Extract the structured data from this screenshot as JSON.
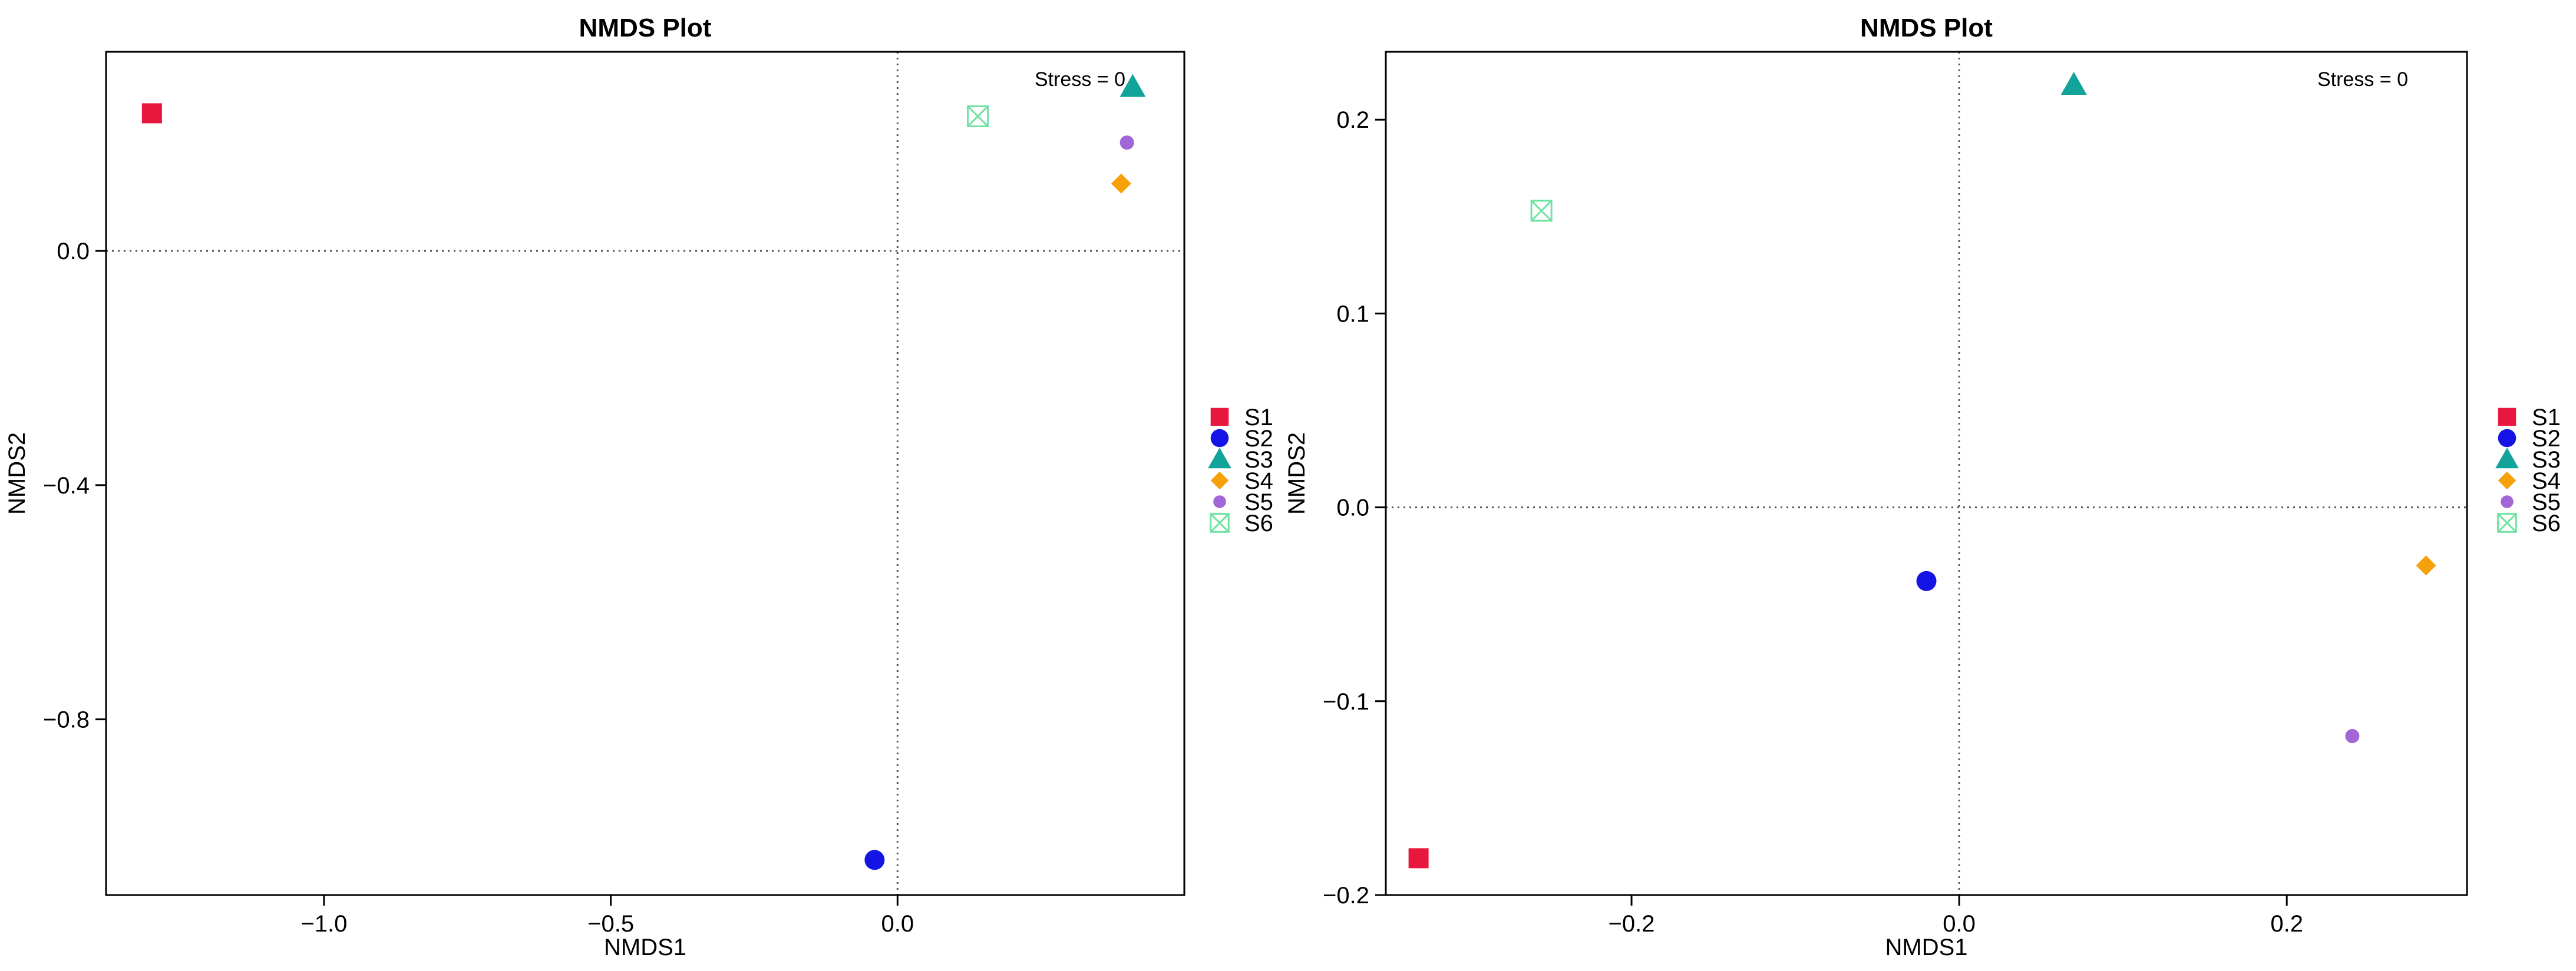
{
  "chart_data": [
    {
      "type": "scatter",
      "title": "NMDS Plot",
      "xlabel": "NMDS1",
      "ylabel": "NMDS2",
      "annotation": "Stress = 0",
      "xlim": [
        -1.38,
        0.5
      ],
      "ylim": [
        -1.1,
        0.34
      ],
      "xticks": [
        -1.0,
        -0.5,
        0.0
      ],
      "yticks": [
        0.0,
        -0.4,
        -0.8
      ],
      "xtick_labels": [
        "−1.0",
        "−0.5",
        "0.0"
      ],
      "ytick_labels": [
        "0.0",
        "−0.4",
        "−0.8"
      ],
      "reference_lines": {
        "x": 0,
        "y": 0
      },
      "legend_position": "right",
      "series": [
        {
          "name": "S1",
          "x": -1.3,
          "y": 0.235,
          "color": "#e8173d",
          "marker": "square"
        },
        {
          "name": "S2",
          "x": -0.04,
          "y": -1.04,
          "color": "#1414e6",
          "marker": "circle"
        },
        {
          "name": "S3",
          "x": 0.41,
          "y": 0.28,
          "color": "#12a39a",
          "marker": "triangle"
        },
        {
          "name": "S4",
          "x": 0.39,
          "y": 0.115,
          "color": "#f5a10a",
          "marker": "diamond"
        },
        {
          "name": "S5",
          "x": 0.4,
          "y": 0.185,
          "color": "#a366d6",
          "marker": "small-circle"
        },
        {
          "name": "S6",
          "x": 0.14,
          "y": 0.23,
          "color": "#6fe2a0",
          "marker": "box-x"
        }
      ]
    },
    {
      "type": "scatter",
      "title": "NMDS Plot",
      "xlabel": "NMDS1",
      "ylabel": "NMDS2",
      "annotation": "Stress = 0",
      "xlim": [
        -0.35,
        0.31
      ],
      "ylim": [
        -0.2,
        0.235
      ],
      "xticks": [
        -0.2,
        0.0,
        0.2
      ],
      "yticks": [
        0.2,
        0.1,
        0.0,
        -0.1,
        -0.2
      ],
      "xtick_labels": [
        "−0.2",
        "0.0",
        "0.2"
      ],
      "ytick_labels": [
        "0.2",
        "0.1",
        "0.0",
        "−0.1",
        "−0.2"
      ],
      "reference_lines": {
        "x": 0,
        "y": 0
      },
      "legend_position": "right",
      "series": [
        {
          "name": "S1",
          "x": -0.33,
          "y": -0.181,
          "color": "#e8173d",
          "marker": "square"
        },
        {
          "name": "S2",
          "x": -0.02,
          "y": -0.038,
          "color": "#1414e6",
          "marker": "circle"
        },
        {
          "name": "S3",
          "x": 0.07,
          "y": 0.218,
          "color": "#12a39a",
          "marker": "triangle"
        },
        {
          "name": "S4",
          "x": 0.285,
          "y": -0.03,
          "color": "#f5a10a",
          "marker": "diamond"
        },
        {
          "name": "S5",
          "x": 0.24,
          "y": -0.118,
          "color": "#a366d6",
          "marker": "small-circle"
        },
        {
          "name": "S6",
          "x": -0.255,
          "y": 0.153,
          "color": "#6fe2a0",
          "marker": "box-x"
        }
      ]
    }
  ]
}
